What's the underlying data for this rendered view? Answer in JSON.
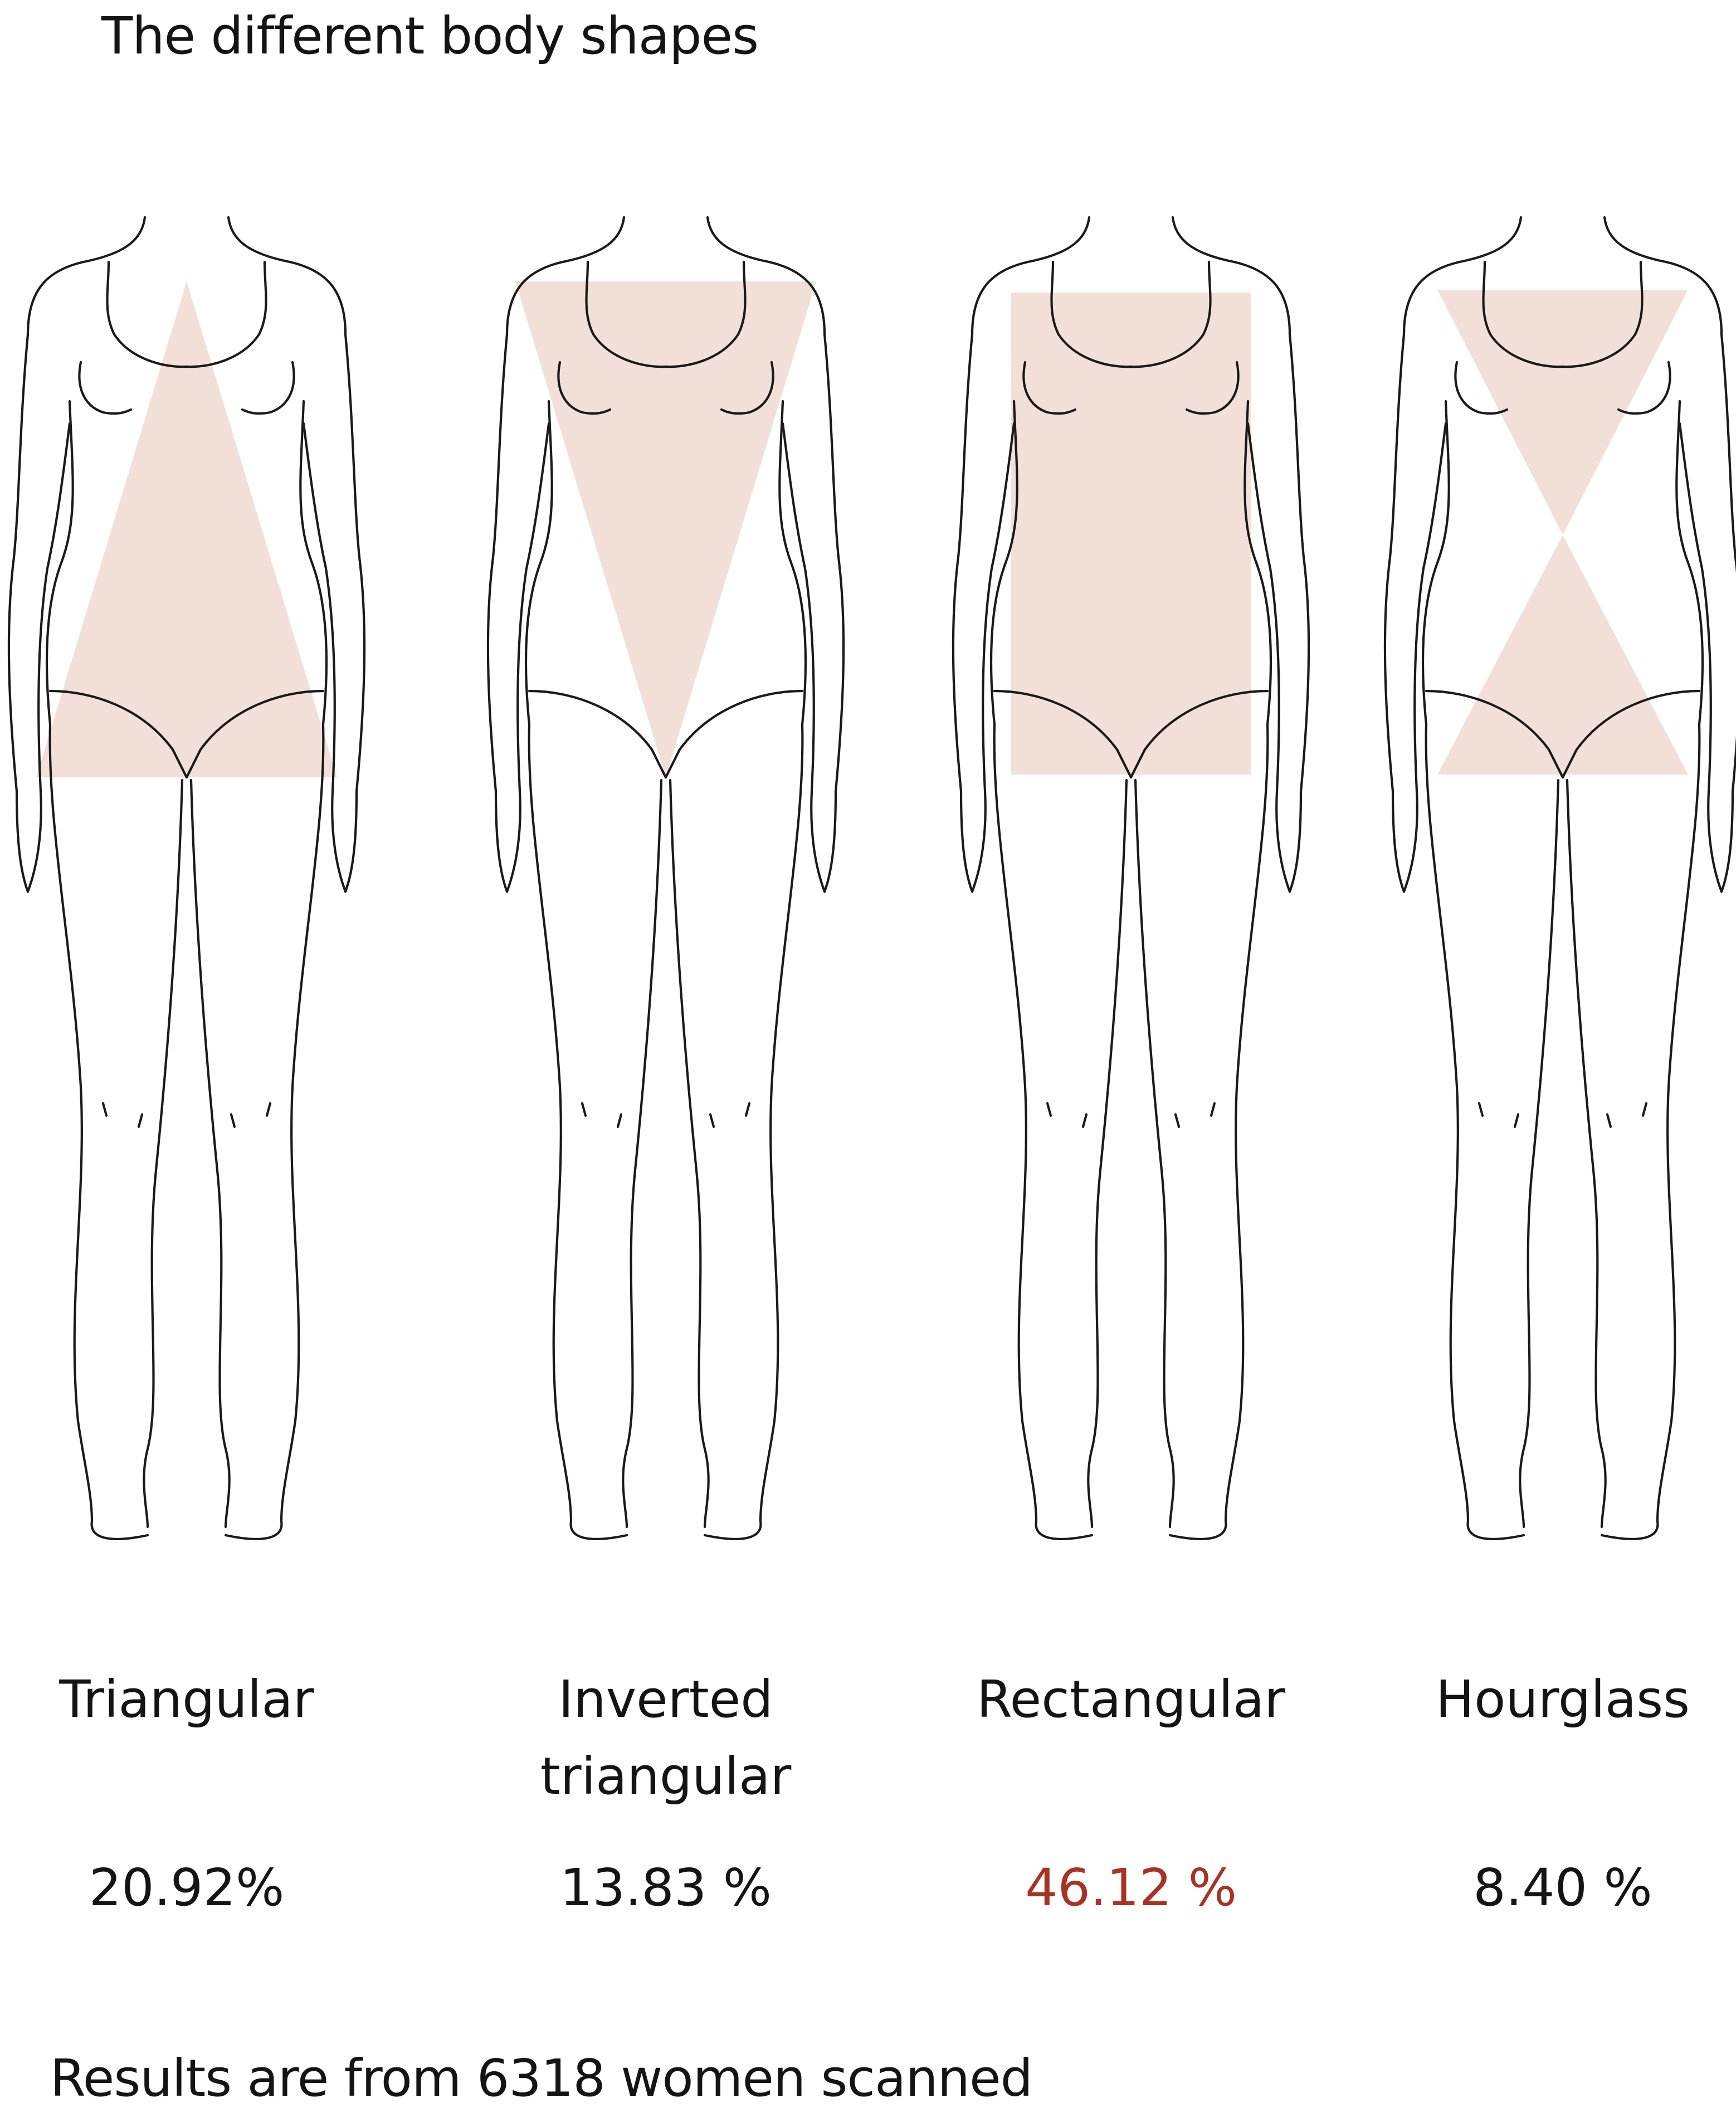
{
  "title": "The different body shapes",
  "colors": {
    "shape_fill": "#f2e0d8",
    "outline": "#1a1a1a",
    "text": "#141414",
    "highlight": "#a83224"
  },
  "shapes": [
    {
      "name": "Triangular",
      "name_line2": "",
      "percent": "20.92%",
      "highlight": false,
      "overlay": "triangle"
    },
    {
      "name": "Inverted",
      "name_line2": "triangular",
      "percent": "13.83 %",
      "highlight": false,
      "overlay": "inverted-triangle"
    },
    {
      "name": "Rectangular",
      "name_line2": "",
      "percent": "46.12 %",
      "highlight": true,
      "overlay": "rectangle"
    },
    {
      "name": "Hourglass",
      "name_line2": "",
      "percent": "8.40 %",
      "highlight": false,
      "overlay": "hourglass"
    }
  ],
  "footnote": "Results are from 6318 women scanned"
}
